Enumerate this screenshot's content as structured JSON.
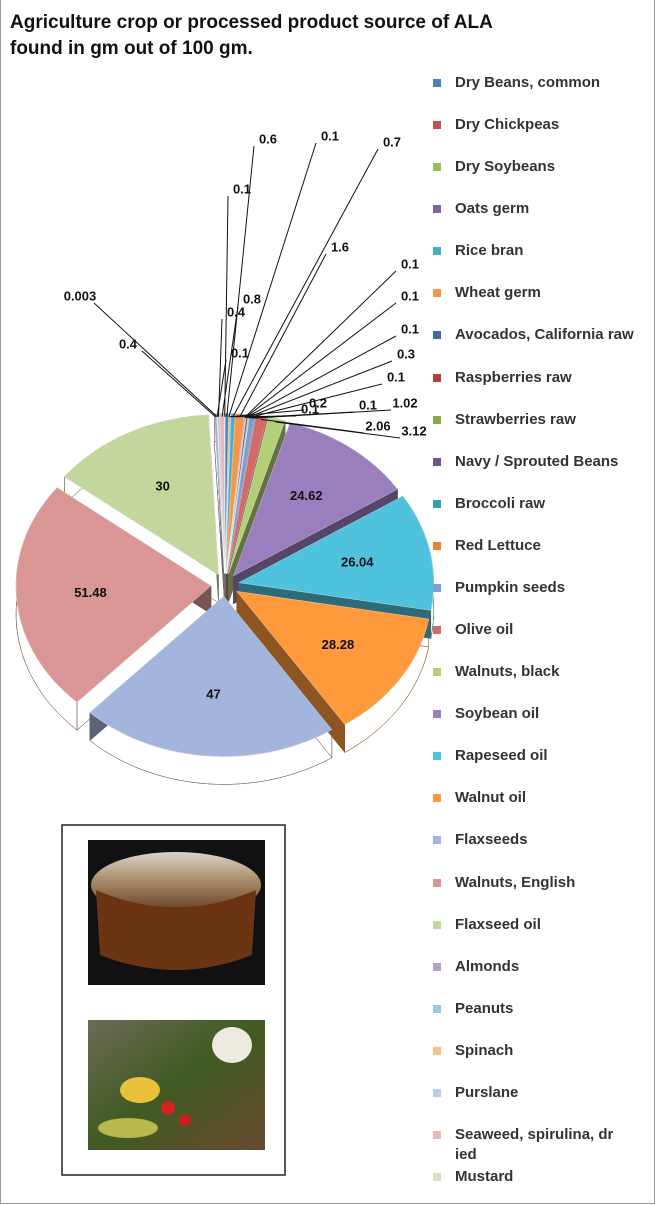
{
  "chart_data": {
    "type": "pie",
    "title": "Agriculture crop or processed product source of ALA found in gm out of 100 gm.",
    "categories": [
      "Dry Beans, common",
      "Dry Chickpeas",
      "Dry Soybeans",
      "Oats germ",
      "Rice bran",
      "Wheat germ",
      "Avocados, California raw",
      "Raspberries raw",
      "Strawberries raw",
      "Navy / Sprouted Beans",
      "Broccoli raw",
      "Red Lettuce",
      "Pumpkin seeds",
      "Olive oil",
      "Walnuts, black",
      "Soybean oil",
      "Rapeseed oil",
      "Walnut oil",
      "Flaxseeds",
      "Walnuts, English",
      "Flaxseed oil",
      "Almonds",
      "Peanuts",
      "Spinach",
      "Purslane",
      "Seaweed, spirulina, dr ied",
      "Mustard"
    ],
    "values": [
      0.6,
      0.1,
      0.2,
      0.1,
      0.7,
      1.6,
      0.1,
      0.1,
      0.1,
      0.3,
      0.1,
      0.1,
      1.02,
      2.06,
      3.12,
      24.62,
      26.04,
      28.28,
      47,
      51.48,
      30,
      0.4,
      0.1,
      0.003,
      0.4,
      0.8,
      0.1
    ],
    "colors": [
      "#4F81BD",
      "#C0504D",
      "#9BBB59",
      "#8064A2",
      "#4BACC6",
      "#F79646",
      "#3C6AAA",
      "#B2403D",
      "#8AAA48",
      "#6F5491",
      "#3A9BB5",
      "#E68535",
      "#7C9FD3",
      "#D46A67",
      "#B3CF7A",
      "#9A7FBE",
      "#4FC3DD",
      "#FF9A3C",
      "#A3B5DC",
      "#D99694",
      "#C3D69B",
      "#B3A2C7",
      "#93CDDD",
      "#FAC090",
      "#B9CDE5",
      "#E6B9B8",
      "#D7E4BD"
    ],
    "legend": "right"
  }
}
